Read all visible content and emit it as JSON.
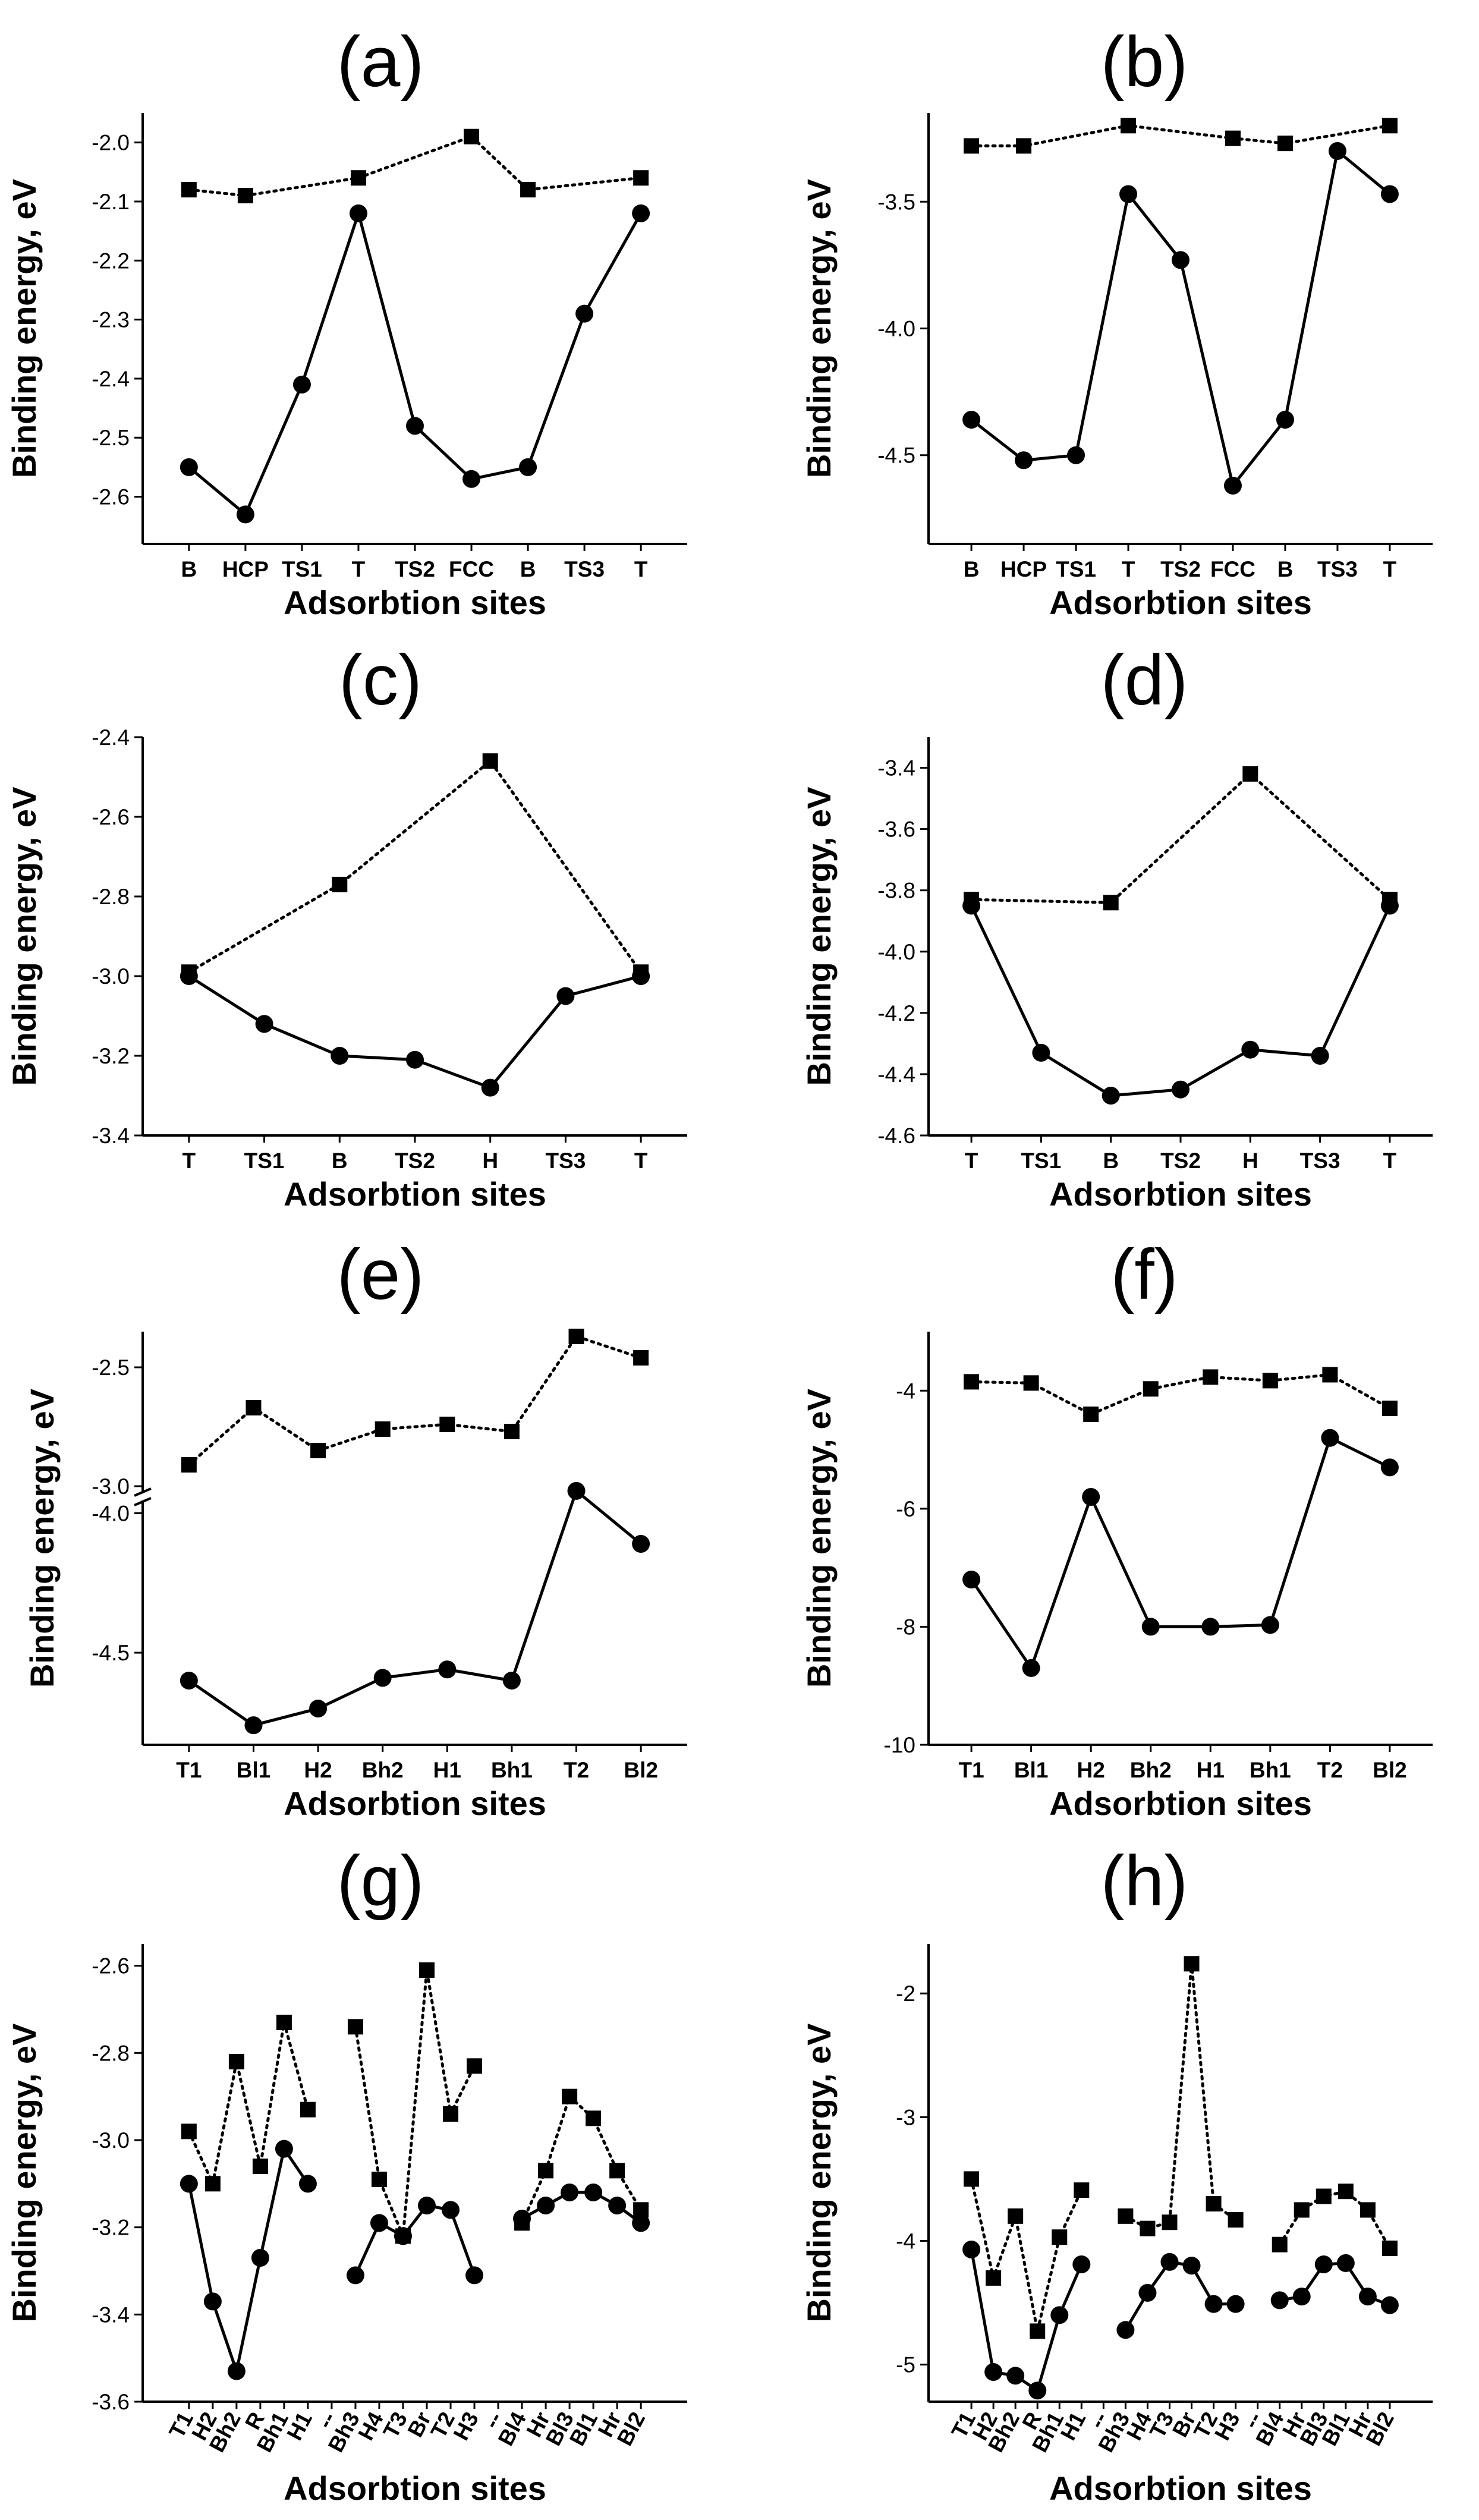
{
  "chart_data": [
    {
      "panel": "(a)",
      "type": "line",
      "xlabel": "Adsorbtion sites",
      "ylabel": "Binding energy, eV",
      "categories": [
        "B",
        "HCP",
        "TS1",
        "T",
        "TS2",
        "FCC",
        "B",
        "TS3",
        "T"
      ],
      "ylim": [
        -2.68,
        -1.95
      ],
      "yticks": [
        -2.6,
        -2.5,
        -2.4,
        -2.3,
        -2.2,
        -2.1,
        -2.0
      ],
      "ytick_labels": [
        "-2.6",
        "-2.5",
        "-2.4",
        "-2.3",
        "-2.2",
        "-2.1",
        "-2.0"
      ],
      "series": [
        {
          "name": "squares",
          "style": "dotted",
          "marker": "square",
          "points": [
            [
              0,
              -2.08
            ],
            [
              1,
              -2.09
            ],
            [
              3,
              -2.06
            ],
            [
              5,
              -1.99
            ],
            [
              6,
              -2.08
            ],
            [
              8,
              -2.06
            ]
          ]
        },
        {
          "name": "circles",
          "style": "solid",
          "marker": "circle",
          "points": [
            [
              0,
              -2.55
            ],
            [
              1,
              -2.63
            ],
            [
              2,
              -2.41
            ],
            [
              3,
              -2.12
            ],
            [
              4,
              -2.48
            ],
            [
              5,
              -2.57
            ],
            [
              6,
              -2.55
            ],
            [
              7,
              -2.29
            ],
            [
              8,
              -2.12
            ]
          ]
        }
      ]
    },
    {
      "panel": "(b)",
      "type": "line",
      "xlabel": "Adsorbtion sites",
      "ylabel": "Binding energy, eV",
      "categories": [
        "B",
        "HCP",
        "TS1",
        "T",
        "TS2",
        "FCC",
        "B",
        "TS3",
        "T"
      ],
      "ylim": [
        -4.85,
        -3.15
      ],
      "yticks": [
        -4.5,
        -4.0,
        -3.5
      ],
      "ytick_labels": [
        "-4.5",
        "-4.0",
        "-3.5"
      ],
      "series": [
        {
          "name": "squares",
          "style": "dotted",
          "marker": "square",
          "points": [
            [
              0,
              -3.28
            ],
            [
              1,
              -3.28
            ],
            [
              3,
              -3.2
            ],
            [
              5,
              -3.25
            ],
            [
              6,
              -3.27
            ],
            [
              8,
              -3.2
            ]
          ]
        },
        {
          "name": "circles",
          "style": "solid",
          "marker": "circle",
          "points": [
            [
              0,
              -4.36
            ],
            [
              1,
              -4.52
            ],
            [
              2,
              -4.5
            ],
            [
              3,
              -3.47
            ],
            [
              4,
              -3.73
            ],
            [
              5,
              -4.62
            ],
            [
              6,
              -4.36
            ],
            [
              7,
              -3.3
            ],
            [
              8,
              -3.47
            ]
          ]
        }
      ]
    },
    {
      "panel": "(c)",
      "type": "line",
      "xlabel": "Adsorbtion sites",
      "ylabel": "Binding energy, eV",
      "categories": [
        "T",
        "TS1",
        "B",
        "TS2",
        "H",
        "TS3",
        "T"
      ],
      "ylim": [
        -3.4,
        -2.4
      ],
      "yticks": [
        -3.4,
        -3.2,
        -3.0,
        -2.8,
        -2.6,
        -2.4
      ],
      "ytick_labels": [
        "-3.4",
        "-3.2",
        "-3.0",
        "-2.8",
        "-2.6",
        "-2.4"
      ],
      "series": [
        {
          "name": "squares",
          "style": "dotted",
          "marker": "square",
          "points": [
            [
              0,
              -2.99
            ],
            [
              2,
              -2.77
            ],
            [
              4,
              -2.46
            ],
            [
              6,
              -2.99
            ]
          ]
        },
        {
          "name": "circles",
          "style": "solid",
          "marker": "circle",
          "points": [
            [
              0,
              -3.0
            ],
            [
              1,
              -3.12
            ],
            [
              2,
              -3.2
            ],
            [
              3,
              -3.21
            ],
            [
              4,
              -3.28
            ],
            [
              5,
              -3.05
            ],
            [
              6,
              -3.0
            ]
          ]
        }
      ]
    },
    {
      "panel": "(d)",
      "type": "line",
      "xlabel": "Adsorbtion sites",
      "ylabel": "Binding energy, eV",
      "categories": [
        "T",
        "TS1",
        "B",
        "TS2",
        "H",
        "TS3",
        "T"
      ],
      "ylim": [
        -4.6,
        -3.3
      ],
      "yticks": [
        -4.6,
        -4.4,
        -4.2,
        -4.0,
        -3.8,
        -3.6,
        -3.4
      ],
      "ytick_labels": [
        "-4.6",
        "-4.4",
        "-4.2",
        "-4.0",
        "-3.8",
        "-3.6",
        "-3.4"
      ],
      "series": [
        {
          "name": "squares",
          "style": "dotted",
          "marker": "square",
          "points": [
            [
              0,
              -3.83
            ],
            [
              2,
              -3.84
            ],
            [
              4,
              -3.42
            ],
            [
              6,
              -3.83
            ]
          ]
        },
        {
          "name": "circles",
          "style": "solid",
          "marker": "circle",
          "points": [
            [
              0,
              -3.85
            ],
            [
              1,
              -4.33
            ],
            [
              2,
              -4.47
            ],
            [
              3,
              -4.45
            ],
            [
              4,
              -4.32
            ],
            [
              5,
              -4.34
            ],
            [
              6,
              -3.85
            ]
          ]
        }
      ]
    },
    {
      "panel": "(e)",
      "type": "line",
      "broken_axis": true,
      "xlabel": "Adsorbtion sites",
      "ylabel": "Binding energy, eV",
      "categories": [
        "T1",
        "Bl1",
        "H2",
        "Bh2",
        "H1",
        "Bh1",
        "T2",
        "Bl2"
      ],
      "upper_ylim": [
        -3.0,
        -2.35
      ],
      "lower_ylim": [
        -4.83,
        -3.98
      ],
      "yticks_upper": [
        -3.0,
        -2.5
      ],
      "ytick_labels_upper": [
        "-3.0",
        "-2.5"
      ],
      "yticks_lower": [
        -4.5,
        -4.0
      ],
      "ytick_labels_lower": [
        "-4.5",
        "-4.0"
      ],
      "series": [
        {
          "name": "squares",
          "style": "dotted",
          "marker": "square",
          "points": [
            [
              0,
              -2.91
            ],
            [
              1,
              -2.67
            ],
            [
              2,
              -2.85
            ],
            [
              3,
              -2.76
            ],
            [
              4,
              -2.74
            ],
            [
              5,
              -2.77
            ],
            [
              6,
              -2.37
            ],
            [
              7,
              -2.46
            ]
          ]
        },
        {
          "name": "circles",
          "style": "solid",
          "marker": "circle",
          "points": [
            [
              0,
              -4.6
            ],
            [
              1,
              -4.76
            ],
            [
              2,
              -4.7
            ],
            [
              3,
              -4.59
            ],
            [
              4,
              -4.56
            ],
            [
              5,
              -4.6
            ],
            [
              6,
              -3.92
            ],
            [
              7,
              -4.11
            ]
          ]
        }
      ]
    },
    {
      "panel": "(f)",
      "type": "line",
      "xlabel": "Adsorbtion sites",
      "ylabel": "Binding energy, eV",
      "categories": [
        "T1",
        "Bl1",
        "H2",
        "Bh2",
        "H1",
        "Bh1",
        "T2",
        "Bl2"
      ],
      "ylim": [
        -10,
        -3
      ],
      "yticks": [
        -10,
        -8,
        -6,
        -4
      ],
      "ytick_labels": [
        "-10",
        "-8",
        "-6",
        "-4"
      ],
      "series": [
        {
          "name": "squares",
          "style": "dotted",
          "marker": "square",
          "points": [
            [
              0,
              -3.85
            ],
            [
              1,
              -3.87
            ],
            [
              2,
              -4.4
            ],
            [
              3,
              -3.97
            ],
            [
              4,
              -3.77
            ],
            [
              5,
              -3.83
            ],
            [
              6,
              -3.73
            ],
            [
              7,
              -4.3
            ]
          ]
        },
        {
          "name": "circles",
          "style": "solid",
          "marker": "circle",
          "points": [
            [
              0,
              -7.2
            ],
            [
              1,
              -8.7
            ],
            [
              2,
              -5.8
            ],
            [
              3,
              -8.0
            ],
            [
              4,
              -8.0
            ],
            [
              5,
              -7.97
            ],
            [
              6,
              -4.8
            ],
            [
              7,
              -5.3
            ]
          ]
        }
      ]
    },
    {
      "panel": "(g)",
      "type": "line",
      "xlabel": "Adsorbtion sites",
      "ylabel": "Binding energy, eV",
      "categories": [
        "T1",
        "H2",
        "Bh2",
        "R",
        "Bh1",
        "H1",
        "--",
        "Bh3",
        "H4",
        "T3",
        "Br",
        "T2",
        "H3",
        "--",
        "Bl4",
        "Hr",
        "Bl3",
        "Bl1",
        "Hr",
        "Bl2"
      ],
      "ylim": [
        -3.6,
        -2.55
      ],
      "yticks": [
        -3.6,
        -3.4,
        -3.2,
        -3.0,
        -2.8,
        -2.6
      ],
      "ytick_labels": [
        "-3.6",
        "-3.4",
        "-3.2",
        "-3.0",
        "-2.8",
        "-2.6"
      ],
      "series": [
        {
          "name": "squares",
          "style": "dotted",
          "marker": "square",
          "segments": [
            [
              [
                0,
                -2.98
              ],
              [
                1,
                -3.1
              ],
              [
                2,
                -2.82
              ],
              [
                3,
                -3.06
              ],
              [
                4,
                -2.73
              ],
              [
                5,
                -2.93
              ]
            ],
            [
              [
                7,
                -2.74
              ],
              [
                8,
                -3.09
              ],
              [
                9,
                -3.22
              ],
              [
                10,
                -2.61
              ],
              [
                11,
                -2.94
              ],
              [
                12,
                -2.83
              ]
            ],
            [
              [
                14,
                -3.19
              ],
              [
                15,
                -3.07
              ],
              [
                16,
                -2.9
              ],
              [
                17,
                -2.95
              ],
              [
                18,
                -3.07
              ],
              [
                19,
                -3.16
              ]
            ]
          ]
        },
        {
          "name": "circles",
          "style": "solid",
          "marker": "circle",
          "segments": [
            [
              [
                0,
                -3.1
              ],
              [
                1,
                -3.37
              ],
              [
                2,
                -3.53
              ],
              [
                3,
                -3.27
              ],
              [
                4,
                -3.02
              ],
              [
                5,
                -3.1
              ]
            ],
            [
              [
                7,
                -3.31
              ],
              [
                8,
                -3.19
              ],
              [
                9,
                -3.22
              ],
              [
                10,
                -3.15
              ],
              [
                11,
                -3.16
              ],
              [
                12,
                -3.31
              ]
            ],
            [
              [
                14,
                -3.18
              ],
              [
                15,
                -3.15
              ],
              [
                16,
                -3.12
              ],
              [
                17,
                -3.12
              ],
              [
                18,
                -3.15
              ],
              [
                19,
                -3.19
              ]
            ]
          ]
        }
      ]
    },
    {
      "panel": "(h)",
      "type": "line",
      "xlabel": "Adsorbtion sites",
      "ylabel": "Binding energy, eV",
      "categories": [
        "T1",
        "H2",
        "Bh2",
        "R",
        "Bh1",
        "H1",
        "--",
        "Bh3",
        "H4",
        "T3",
        "Br",
        "T2",
        "H3",
        "--",
        "Bl4",
        "Hr",
        "Bl3",
        "Bl1",
        "Hr",
        "Bl2"
      ],
      "ylim": [
        -5.3,
        -1.6
      ],
      "yticks": [
        -5,
        -4,
        -3,
        -2
      ],
      "ytick_labels": [
        "-5",
        "-4",
        "-3",
        "-2"
      ],
      "series": [
        {
          "name": "squares",
          "style": "dotted",
          "marker": "square",
          "segments": [
            [
              [
                0,
                -3.5
              ],
              [
                1,
                -4.3
              ],
              [
                2,
                -3.8
              ],
              [
                3,
                -4.73
              ],
              [
                4,
                -3.97
              ],
              [
                5,
                -3.59
              ]
            ],
            [
              [
                7,
                -3.8
              ],
              [
                8,
                -3.9
              ],
              [
                9,
                -3.85
              ],
              [
                10,
                -1.76
              ],
              [
                11,
                -3.7
              ],
              [
                12,
                -3.83
              ]
            ],
            [
              [
                14,
                -4.03
              ],
              [
                15,
                -3.75
              ],
              [
                16,
                -3.64
              ],
              [
                17,
                -3.6
              ],
              [
                18,
                -3.75
              ],
              [
                19,
                -4.06
              ]
            ]
          ]
        },
        {
          "name": "circles",
          "style": "solid",
          "marker": "circle",
          "segments": [
            [
              [
                0,
                -4.07
              ],
              [
                1,
                -5.06
              ],
              [
                2,
                -5.09
              ],
              [
                3,
                -5.21
              ],
              [
                4,
                -4.6
              ],
              [
                5,
                -4.19
              ]
            ],
            [
              [
                7,
                -4.72
              ],
              [
                8,
                -4.42
              ],
              [
                9,
                -4.17
              ],
              [
                10,
                -4.2
              ],
              [
                11,
                -4.51
              ],
              [
                12,
                -4.51
              ]
            ],
            [
              [
                14,
                -4.48
              ],
              [
                15,
                -4.45
              ],
              [
                16,
                -4.19
              ],
              [
                17,
                -4.18
              ],
              [
                18,
                -4.45
              ],
              [
                19,
                -4.52
              ]
            ]
          ]
        }
      ]
    }
  ]
}
